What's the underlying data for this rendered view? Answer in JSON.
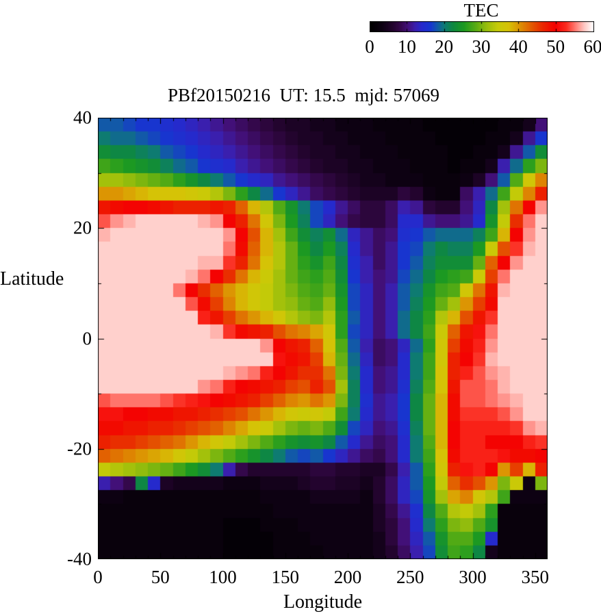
{
  "title": "PBf20150216  UT: 15.5  mjd: 57069",
  "colorbar": {
    "label": "TEC",
    "tick_labels": [
      "0",
      "10",
      "20",
      "30",
      "40",
      "50",
      "60"
    ],
    "range": [
      0,
      60
    ]
  },
  "axes": {
    "xlabel": "Longitude",
    "ylabel": "Latitude",
    "x_tick_values": [
      0,
      50,
      100,
      150,
      200,
      250,
      300,
      350
    ],
    "y_tick_values": [
      40,
      20,
      0,
      -20,
      -40
    ],
    "x_minor_step": 10,
    "y_minor_step": 10,
    "xlim": [
      0,
      360
    ],
    "ylim": [
      -40,
      40
    ]
  },
  "chart_data": {
    "type": "heatmap",
    "title": "PBf20150216  UT: 15.5  mjd: 57069",
    "xlabel": "Longitude",
    "ylabel": "Latitude",
    "colorbar_title": "TEC",
    "colorbar_range": [
      0,
      60
    ],
    "x_range": [
      0,
      360
    ],
    "y_range": [
      -40,
      40
    ],
    "lon_step": 10,
    "lat_step": 2.5,
    "row_order": "north_to_south",
    "row_lat_centers": [
      38.75,
      36.25,
      33.75,
      31.25,
      28.75,
      26.25,
      23.75,
      21.25,
      18.75,
      16.25,
      13.75,
      11.25,
      8.75,
      6.25,
      3.75,
      1.25,
      -1.25,
      -3.75,
      -6.25,
      -8.75,
      -11.25,
      -13.75,
      -16.25,
      -18.75,
      -21.25,
      -23.75,
      -26.25,
      -28.75,
      -31.25,
      -33.75,
      -36.25,
      -38.75
    ],
    "palette_stops": [
      [
        0.0,
        "#000000"
      ],
      [
        0.05,
        "#0d0112"
      ],
      [
        0.1,
        "#23042e"
      ],
      [
        0.13,
        "#330747"
      ],
      [
        0.17,
        "#43117c"
      ],
      [
        0.2,
        "#3a1fae"
      ],
      [
        0.23,
        "#2629cc"
      ],
      [
        0.27,
        "#1736cf"
      ],
      [
        0.3,
        "#1259a8"
      ],
      [
        0.33,
        "#0e7a76"
      ],
      [
        0.37,
        "#0e883f"
      ],
      [
        0.42,
        "#1d9a20"
      ],
      [
        0.47,
        "#55ab14"
      ],
      [
        0.52,
        "#96bd0c"
      ],
      [
        0.57,
        "#c6cb08"
      ],
      [
        0.62,
        "#d6c206"
      ],
      [
        0.67,
        "#dc9203"
      ],
      [
        0.72,
        "#e25e01"
      ],
      [
        0.77,
        "#ea2b00"
      ],
      [
        0.83,
        "#f40000"
      ],
      [
        0.88,
        "#fb2d20"
      ],
      [
        0.92,
        "#ff7b72"
      ],
      [
        0.96,
        "#ffc7c2"
      ],
      [
        1.0,
        "#ffffff"
      ]
    ],
    "values": [
      [
        18,
        18,
        17,
        16,
        16,
        15,
        14,
        13,
        12,
        11,
        10,
        9,
        8,
        7,
        6,
        5,
        5,
        4,
        4,
        3,
        3,
        3,
        2,
        2,
        2,
        2,
        1,
        1,
        1,
        1,
        1,
        1,
        2,
        2,
        4,
        10
      ],
      [
        20,
        19,
        19,
        18,
        17,
        16,
        15,
        14,
        13,
        12,
        11,
        10,
        9,
        8,
        7,
        6,
        5,
        5,
        4,
        4,
        3,
        3,
        3,
        2,
        2,
        2,
        2,
        1,
        1,
        1,
        1,
        2,
        2,
        4,
        11,
        16
      ],
      [
        23,
        22,
        22,
        21,
        20,
        18,
        17,
        16,
        14,
        13,
        12,
        11,
        10,
        9,
        8,
        7,
        6,
        5,
        5,
        4,
        4,
        3,
        3,
        3,
        2,
        2,
        2,
        2,
        1,
        1,
        2,
        2,
        4,
        11,
        18,
        23
      ],
      [
        27,
        26,
        25,
        24,
        23,
        21,
        19,
        18,
        16,
        15,
        14,
        12,
        11,
        10,
        9,
        8,
        7,
        6,
        5,
        5,
        4,
        4,
        3,
        3,
        3,
        2,
        2,
        2,
        1,
        2,
        2,
        4,
        12,
        19,
        26,
        30
      ],
      [
        32,
        32,
        31,
        30,
        29,
        28,
        26,
        24,
        22,
        20,
        18,
        16,
        14,
        13,
        11,
        10,
        9,
        8,
        7,
        6,
        5,
        4,
        4,
        3,
        3,
        3,
        2,
        2,
        2,
        3,
        5,
        10,
        18,
        28,
        36,
        41
      ],
      [
        40,
        40,
        39,
        38,
        37,
        37,
        37,
        36,
        35,
        33,
        30,
        26,
        22,
        19,
        16,
        13,
        11,
        9,
        8,
        7,
        6,
        5,
        5,
        5,
        7,
        6,
        3,
        2,
        2,
        9,
        12,
        19,
        27,
        34,
        41,
        47
      ],
      [
        48,
        49,
        50,
        50,
        49,
        48,
        47,
        47,
        47,
        48,
        47,
        43,
        38,
        33,
        28,
        24,
        20,
        17,
        14,
        11,
        9,
        7,
        7,
        9,
        12,
        11,
        7,
        6,
        6,
        10,
        13,
        22,
        32,
        42,
        50,
        56
      ],
      [
        54,
        56,
        57,
        58,
        58,
        58,
        58,
        58,
        57,
        56,
        50,
        47,
        42,
        36,
        30,
        25,
        21,
        17,
        13,
        10,
        8,
        7,
        7,
        9,
        14,
        14,
        11,
        10,
        10,
        11,
        14,
        24,
        34,
        46,
        55,
        58
      ],
      [
        57,
        58,
        58,
        58,
        58,
        58,
        58,
        58,
        58,
        58,
        56,
        50,
        44,
        38,
        32,
        27,
        23,
        21,
        23,
        19,
        13,
        11,
        9,
        10,
        15,
        16,
        18,
        19,
        19,
        19,
        21,
        27,
        38,
        50,
        56,
        58
      ],
      [
        58,
        58,
        58,
        58,
        58,
        58,
        58,
        58,
        58,
        58,
        55,
        49,
        43,
        38,
        33,
        29,
        25,
        22,
        25,
        21,
        14,
        11,
        9,
        11,
        16,
        17,
        20,
        22,
        21,
        21,
        25,
        35,
        44,
        53,
        57,
        58
      ],
      [
        58,
        58,
        58,
        58,
        58,
        58,
        58,
        58,
        57,
        57,
        53,
        47,
        42,
        37,
        33,
        29,
        26,
        24,
        27,
        22,
        15,
        12,
        9,
        11,
        16,
        18,
        21,
        23,
        23,
        23,
        29,
        43,
        50,
        56,
        58,
        58
      ],
      [
        58,
        58,
        58,
        58,
        58,
        58,
        58,
        57,
        55,
        50,
        46,
        42,
        38,
        35,
        32,
        29,
        27,
        26,
        28,
        23,
        16,
        12,
        10,
        11,
        17,
        19,
        22,
        25,
        26,
        27,
        35,
        45,
        55,
        58,
        58,
        58
      ],
      [
        58,
        58,
        58,
        58,
        58,
        58,
        55,
        50,
        46,
        43,
        40,
        38,
        36,
        34,
        32,
        30,
        28,
        27,
        29,
        24,
        17,
        13,
        10,
        12,
        18,
        20,
        24,
        27,
        28,
        36,
        42,
        48,
        57,
        58,
        58,
        58
      ],
      [
        58,
        58,
        58,
        58,
        58,
        58,
        58,
        54,
        49,
        45,
        41,
        38,
        36,
        34,
        32,
        31,
        29,
        28,
        31,
        25,
        17,
        13,
        10,
        12,
        18,
        21,
        25,
        29,
        32,
        40,
        45,
        49,
        58,
        58,
        58,
        58
      ],
      [
        58,
        58,
        58,
        58,
        58,
        58,
        58,
        58,
        52,
        48,
        45,
        42,
        40,
        38,
        36,
        33,
        31,
        30,
        33,
        26,
        18,
        13,
        10,
        12,
        19,
        22,
        26,
        33,
        38,
        44,
        48,
        53,
        58,
        58,
        58,
        58
      ],
      [
        58,
        58,
        58,
        58,
        58,
        58,
        58,
        58,
        58,
        57,
        53,
        49,
        48,
        47,
        44,
        42,
        41,
        39,
        36,
        26,
        17,
        13,
        10,
        12,
        19,
        22,
        27,
        35,
        43,
        48,
        51,
        55,
        58,
        58,
        58,
        58
      ],
      [
        58,
        58,
        58,
        58,
        58,
        58,
        58,
        58,
        58,
        58,
        58,
        58,
        58,
        56,
        50,
        48,
        47,
        43,
        37,
        28,
        18,
        12,
        9,
        10,
        13,
        19,
        26,
        36,
        45,
        49,
        52,
        56,
        58,
        58,
        58,
        58
      ],
      [
        58,
        58,
        58,
        58,
        58,
        58,
        58,
        58,
        58,
        58,
        58,
        58,
        58,
        58,
        51,
        49,
        48,
        45,
        38,
        29,
        19,
        13,
        9,
        10,
        14,
        20,
        27,
        36,
        47,
        50,
        53,
        57,
        58,
        58,
        58,
        58
      ],
      [
        58,
        58,
        58,
        58,
        58,
        58,
        58,
        58,
        58,
        58,
        57,
        56,
        55,
        52,
        50,
        48,
        46,
        46,
        42,
        30,
        20,
        14,
        10,
        11,
        14,
        20,
        27,
        37,
        47,
        52,
        54,
        56,
        57,
        58,
        58,
        58
      ],
      [
        58,
        58,
        58,
        58,
        58,
        58,
        58,
        58,
        56,
        55,
        52,
        50,
        49,
        48,
        47,
        45,
        44,
        47,
        44,
        32,
        21,
        14,
        10,
        11,
        15,
        21,
        28,
        37,
        48,
        54,
        54,
        55,
        57,
        58,
        58,
        58
      ],
      [
        54,
        55,
        55,
        55,
        55,
        54,
        53,
        52,
        51,
        50,
        49,
        48,
        47,
        45,
        43,
        41,
        40,
        42,
        40,
        30,
        21,
        15,
        11,
        12,
        16,
        22,
        29,
        38,
        49,
        54,
        54,
        55,
        56,
        57,
        58,
        58
      ],
      [
        51,
        51,
        50,
        50,
        49,
        49,
        48,
        48,
        47,
        46,
        45,
        44,
        42,
        40,
        38,
        36,
        35,
        36,
        34,
        27,
        20,
        14,
        11,
        12,
        16,
        22,
        29,
        38,
        49,
        53,
        53,
        53,
        54,
        56,
        58,
        58
      ],
      [
        49,
        49,
        48,
        48,
        47,
        47,
        46,
        45,
        44,
        43,
        41,
        39,
        37,
        35,
        32,
        30,
        29,
        30,
        28,
        23,
        17,
        13,
        10,
        11,
        15,
        21,
        29,
        38,
        50,
        52,
        52,
        52,
        52,
        53,
        56,
        57
      ],
      [
        47,
        46,
        46,
        45,
        44,
        43,
        42,
        40,
        38,
        36,
        34,
        32,
        30,
        28,
        26,
        24,
        23,
        24,
        22,
        18,
        14,
        11,
        9,
        10,
        14,
        20,
        28,
        38,
        50,
        52,
        52,
        50,
        50,
        50,
        52,
        53
      ],
      [
        43,
        42,
        41,
        40,
        39,
        38,
        36,
        34,
        32,
        30,
        28,
        26,
        24,
        22,
        20,
        18,
        17,
        18,
        16,
        13,
        11,
        9,
        8,
        10,
        14,
        20,
        27,
        37,
        49,
        52,
        52,
        52,
        51,
        49,
        49,
        50
      ],
      [
        34,
        33,
        32,
        31,
        30,
        29,
        27,
        25,
        23,
        20,
        12,
        8,
        6,
        6,
        6,
        6,
        6,
        7,
        7,
        6,
        6,
        5,
        5,
        8,
        12,
        18,
        26,
        36,
        47,
        51,
        52,
        50,
        40,
        45,
        38,
        47
      ],
      [
        12,
        10,
        8,
        22,
        14,
        5,
        4,
        4,
        4,
        4,
        3,
        3,
        3,
        4,
        4,
        4,
        5,
        6,
        6,
        5,
        5,
        4,
        6,
        9,
        13,
        18,
        25,
        34,
        43,
        46,
        44,
        40,
        30,
        35,
        3,
        30
      ],
      [
        3,
        3,
        2,
        2,
        2,
        2,
        2,
        2,
        2,
        2,
        2,
        2,
        2,
        3,
        3,
        3,
        3,
        4,
        4,
        4,
        4,
        3,
        6,
        9,
        13,
        17,
        24,
        32,
        39,
        41,
        36,
        33,
        27,
        3,
        3,
        3
      ],
      [
        2,
        2,
        2,
        2,
        2,
        2,
        2,
        2,
        2,
        2,
        2,
        2,
        2,
        2,
        3,
        3,
        3,
        3,
        3,
        3,
        3,
        3,
        5,
        8,
        11,
        15,
        22,
        28,
        33,
        34,
        32,
        26,
        2,
        2,
        2,
        2
      ],
      [
        2,
        2,
        2,
        2,
        2,
        2,
        2,
        2,
        2,
        2,
        1,
        1,
        1,
        2,
        2,
        2,
        3,
        3,
        3,
        3,
        3,
        3,
        5,
        7,
        10,
        14,
        20,
        26,
        30,
        31,
        28,
        24,
        2,
        2,
        2,
        2
      ],
      [
        2,
        2,
        2,
        2,
        2,
        2,
        2,
        2,
        2,
        2,
        1,
        1,
        1,
        1,
        2,
        2,
        2,
        3,
        3,
        3,
        3,
        3,
        4,
        7,
        10,
        13,
        18,
        24,
        28,
        28,
        25,
        14,
        2,
        2,
        2,
        2
      ],
      [
        2,
        2,
        2,
        2,
        2,
        2,
        2,
        2,
        2,
        2,
        1,
        1,
        1,
        1,
        2,
        2,
        2,
        2,
        3,
        3,
        3,
        3,
        4,
        6,
        9,
        12,
        17,
        23,
        27,
        26,
        22,
        4,
        2,
        2,
        2,
        2
      ]
    ]
  },
  "layout_colors": {
    "axis": "#000000",
    "text": "#000000",
    "background": "#ffffff"
  }
}
